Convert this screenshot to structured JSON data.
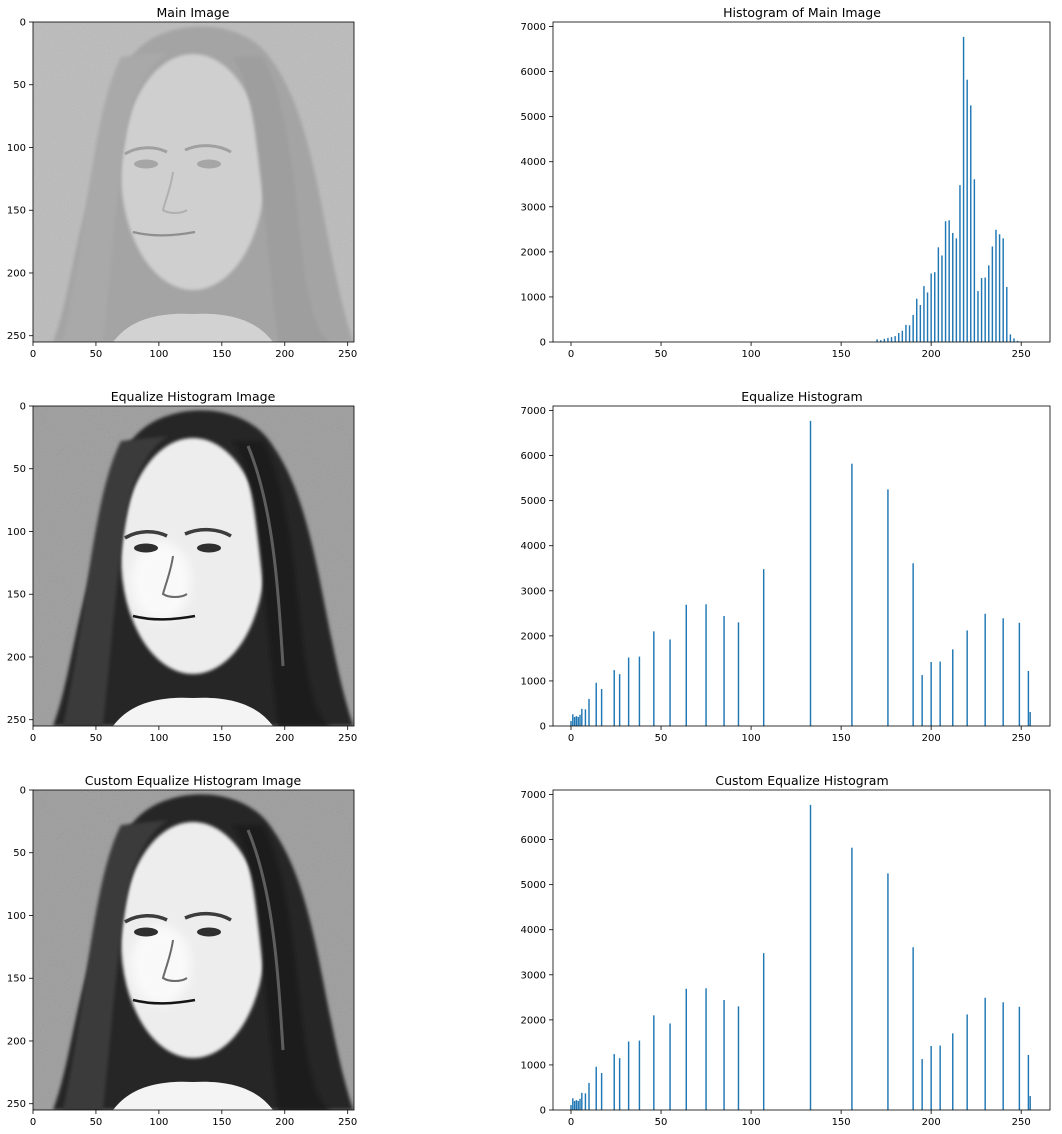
{
  "figure": {
    "background": "#ffffff",
    "bar_color": "#1f77b4"
  },
  "chart_data": [
    {
      "type": "heatmap",
      "title": "Main Image",
      "colormap": "gray",
      "face_style": "low-contrast",
      "xlim": [
        0,
        255
      ],
      "ylim": [
        255,
        0
      ],
      "x_ticks": [
        0,
        50,
        100,
        150,
        200,
        250
      ],
      "y_ticks": [
        0,
        50,
        100,
        150,
        200,
        250
      ]
    },
    {
      "type": "bar",
      "title": "Histogram of Main Image",
      "xlim": [
        -10,
        266
      ],
      "ylim": [
        0,
        7100
      ],
      "x_ticks": [
        0,
        50,
        100,
        150,
        200,
        250
      ],
      "y_ticks": [
        0,
        1000,
        2000,
        3000,
        4000,
        5000,
        6000,
        7000
      ],
      "bar_width": 0.8,
      "x": [
        170,
        172,
        174,
        176,
        178,
        180,
        182,
        184,
        186,
        188,
        190,
        192,
        194,
        196,
        198,
        200,
        202,
        204,
        206,
        208,
        210,
        212,
        214,
        216,
        218,
        220,
        222,
        224,
        226,
        228,
        230,
        232,
        234,
        236,
        238,
        240,
        242,
        244,
        246,
        248,
        250
      ],
      "values": [
        60,
        40,
        70,
        90,
        110,
        130,
        200,
        250,
        380,
        370,
        600,
        960,
        820,
        1240,
        1100,
        1520,
        1550,
        2100,
        1920,
        2680,
        2700,
        2420,
        2300,
        3480,
        6770,
        5820,
        5250,
        3610,
        1130,
        1420,
        1430,
        1700,
        2120,
        2490,
        2390,
        2300,
        1220,
        170,
        80,
        25,
        10
      ]
    },
    {
      "type": "heatmap",
      "title": "Equalize Histogram Image",
      "colormap": "gray",
      "face_style": "high-contrast",
      "xlim": [
        0,
        255
      ],
      "ylim": [
        255,
        0
      ],
      "x_ticks": [
        0,
        50,
        100,
        150,
        200,
        250
      ],
      "y_ticks": [
        0,
        50,
        100,
        150,
        200,
        250
      ]
    },
    {
      "type": "bar",
      "title": "Equalize Histogram",
      "xlim": [
        -10,
        266
      ],
      "ylim": [
        0,
        7100
      ],
      "x_ticks": [
        0,
        50,
        100,
        150,
        200,
        250
      ],
      "y_ticks": [
        0,
        1000,
        2000,
        3000,
        4000,
        5000,
        6000,
        7000
      ],
      "bar_width": 0.8,
      "x": [
        0,
        1,
        2,
        3,
        4,
        5,
        6,
        8,
        10,
        14,
        17,
        24,
        27,
        32,
        38,
        46,
        55,
        64,
        75,
        85,
        93,
        107,
        133,
        156,
        176,
        190,
        195,
        200,
        205,
        212,
        220,
        230,
        240,
        249,
        254,
        255
      ],
      "values": [
        110,
        260,
        200,
        220,
        200,
        250,
        380,
        370,
        600,
        960,
        820,
        1240,
        1150,
        1520,
        1540,
        2100,
        1920,
        2690,
        2700,
        2440,
        2300,
        3480,
        6770,
        5820,
        5250,
        3610,
        1130,
        1420,
        1430,
        1700,
        2120,
        2490,
        2390,
        2290,
        1220,
        310
      ]
    },
    {
      "type": "heatmap",
      "title": "Custom Equalize Histogram Image",
      "colormap": "gray",
      "face_style": "high-contrast",
      "xlim": [
        0,
        255
      ],
      "ylim": [
        255,
        0
      ],
      "x_ticks": [
        0,
        50,
        100,
        150,
        200,
        250
      ],
      "y_ticks": [
        0,
        50,
        100,
        150,
        200,
        250
      ]
    },
    {
      "type": "bar",
      "title": "Custom Equalize Histogram",
      "xlim": [
        -10,
        266
      ],
      "ylim": [
        0,
        7100
      ],
      "x_ticks": [
        0,
        50,
        100,
        150,
        200,
        250
      ],
      "y_ticks": [
        0,
        1000,
        2000,
        3000,
        4000,
        5000,
        6000,
        7000
      ],
      "bar_width": 0.8,
      "x": [
        0,
        1,
        2,
        3,
        4,
        5,
        6,
        8,
        10,
        14,
        17,
        24,
        27,
        32,
        38,
        46,
        55,
        64,
        75,
        85,
        93,
        107,
        133,
        156,
        176,
        190,
        195,
        200,
        205,
        212,
        220,
        230,
        240,
        249,
        254,
        255
      ],
      "values": [
        110,
        260,
        200,
        220,
        200,
        250,
        380,
        370,
        600,
        960,
        820,
        1240,
        1150,
        1520,
        1540,
        2100,
        1920,
        2690,
        2700,
        2440,
        2300,
        3480,
        6770,
        5820,
        5250,
        3610,
        1130,
        1420,
        1430,
        1700,
        2120,
        2490,
        2390,
        2290,
        1220,
        310
      ]
    }
  ]
}
